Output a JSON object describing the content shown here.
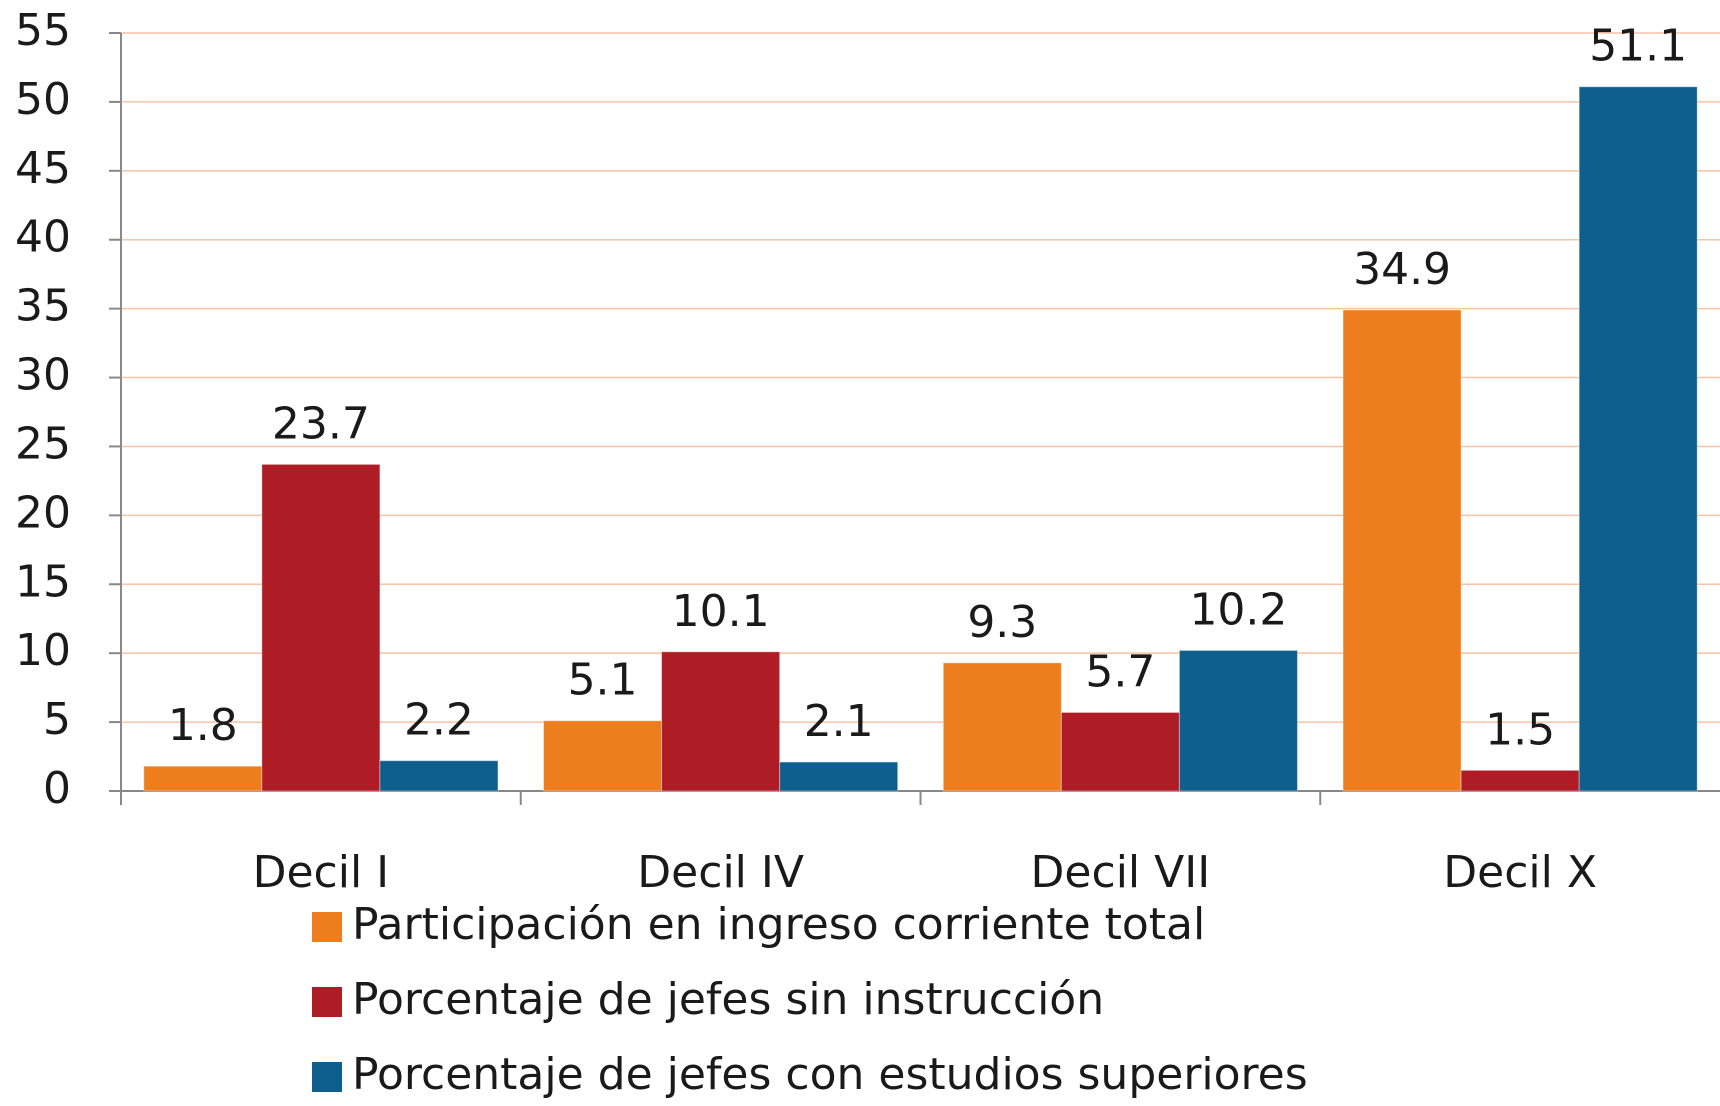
{
  "chart_data": {
    "type": "bar",
    "categories": [
      "Decil I",
      "Decil IV",
      "Decil VII",
      "Decil X"
    ],
    "series": [
      {
        "name": "Participación en ingreso corriente total",
        "color": "#ee7d1e",
        "values": [
          1.8,
          5.1,
          9.3,
          34.9
        ]
      },
      {
        "name": "Porcentaje de jefes sin instrucción",
        "color": "#ae1c26",
        "values": [
          23.7,
          10.1,
          5.7,
          1.5
        ]
      },
      {
        "name": "Porcentaje de jefes con estudios superiores",
        "color": "#0e5e8e",
        "values": [
          2.2,
          2.1,
          10.2,
          51.1
        ]
      }
    ],
    "ylim": [
      0,
      55
    ],
    "yticks": [
      0,
      5,
      10,
      15,
      20,
      25,
      30,
      35,
      40,
      45,
      50,
      55
    ],
    "grid": true,
    "legend": "bottom"
  }
}
